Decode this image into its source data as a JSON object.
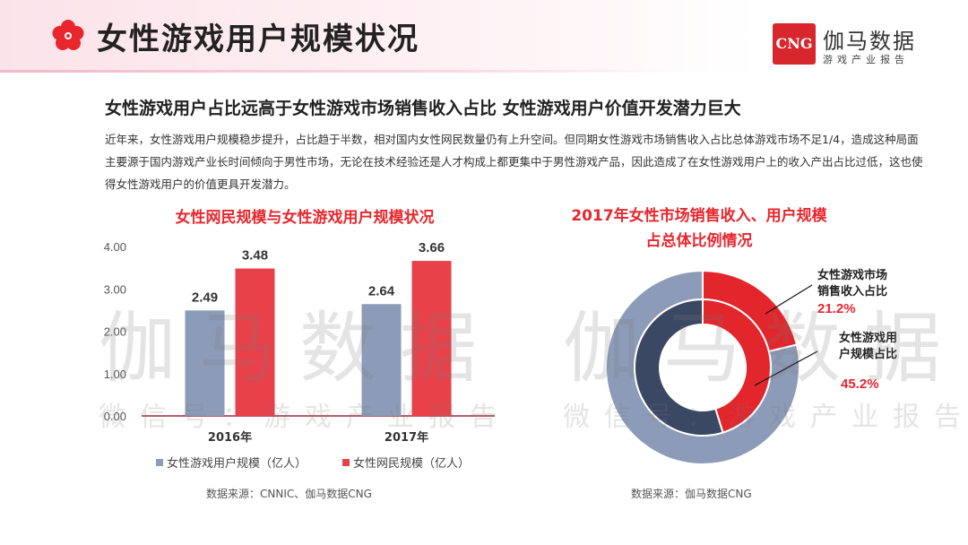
{
  "header": {
    "title": "女性游戏用户规模状况",
    "logo_mark": "CNG",
    "logo_name": "伽马数据",
    "logo_sub": "游戏产业报告"
  },
  "subheading": "女性游戏用户占比远高于女性游戏市场销售收入占比   女性游戏用户价值开发潜力巨大",
  "paragraph": "近年来，女性游戏用户规模稳步提升，占比趋于半数，相对国内女性网民数量仍有上升空间。但同期女性游戏市场销售收入占比总体游戏市场不足1/4，造成这种局面主要源于国内游戏产业长时间倾向于男性市场，无论在技术经验还是人才构成上都更集中于男性游戏产品，因此造成了在女性游戏用户上的收入产出占比过低，这也使得女性游戏用户的价值更具开发潜力。",
  "watermark": {
    "main": "伽马数据",
    "sub": "微信号：游戏产业报告"
  },
  "colors": {
    "accent_red": "#e8262d",
    "bar_blue": "#8c9bb8",
    "bar_red": "#e8414a",
    "donut_outer_blue": "#8c9bb8",
    "donut_inner_navy": "#3b4864",
    "donut_red": "#e2262c"
  },
  "chart_data": [
    {
      "type": "bar",
      "title": "女性网民规模与女性游戏用户规模状况",
      "categories": [
        "2016年",
        "2017年"
      ],
      "series": [
        {
          "name": "女性游戏用户规模（亿人）",
          "values": [
            2.49,
            2.64
          ],
          "labels": [
            "2.49",
            "2.64"
          ]
        },
        {
          "name": "女性网民规模（亿人）",
          "values": [
            3.48,
            3.66
          ],
          "labels": [
            "3.48",
            "3.66"
          ]
        }
      ],
      "yticks": [
        "0.00",
        "1.00",
        "2.00",
        "3.00",
        "4.00"
      ],
      "ylim": [
        0,
        4
      ],
      "legend_position": "bottom",
      "source": "数据来源：CNNIC、伽马数据CNG"
    },
    {
      "type": "pie",
      "style": "double-donut",
      "title_line1": "2017年女性市场销售收入、用户规模",
      "title_line2": "占总体比例情况",
      "rings": [
        {
          "ring": "outer",
          "name": "女性游戏市场销售收入占比",
          "value": 21.2,
          "label_line1": "女性游戏市场",
          "label_line2": "销售收入占比",
          "value_label": "21.2%"
        },
        {
          "ring": "inner",
          "name": "女性游戏用户规模占比",
          "value": 45.2,
          "label_line1": "女性游戏用",
          "label_line2": "户规模占比",
          "value_label": "45.2%"
        }
      ],
      "source": "数据来源：伽马数据CNG"
    }
  ]
}
